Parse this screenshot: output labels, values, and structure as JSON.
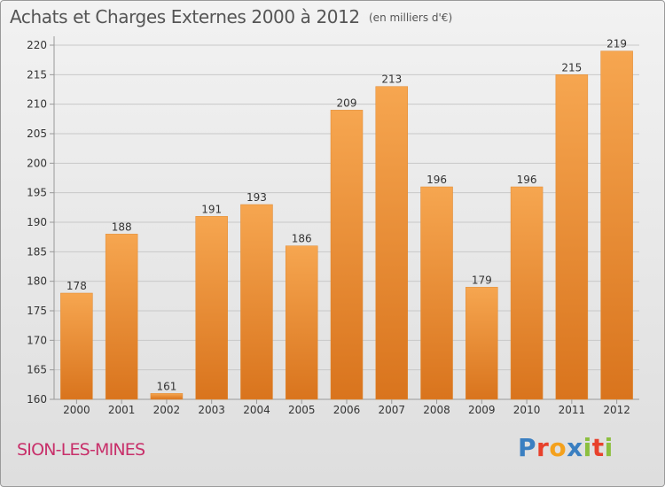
{
  "title": "Achats et Charges Externes 2000 à 2012",
  "subtitle": "(en milliers d'€)",
  "place": "SION-LES-MINES",
  "brand": {
    "name": "Proxiti",
    "letters": [
      {
        "ch": "P",
        "color": "#3a7fc1"
      },
      {
        "ch": "r",
        "color": "#e8412c"
      },
      {
        "ch": "o",
        "color": "#f4a11d"
      },
      {
        "ch": "x",
        "color": "#3a7fc1"
      },
      {
        "ch": "i",
        "color": "#8cbf3f"
      },
      {
        "ch": "t",
        "color": "#e8412c"
      },
      {
        "ch": "i",
        "color": "#8cbf3f"
      }
    ]
  },
  "colors": {
    "bar_top": "#f6a650",
    "bar_bottom": "#d9741d",
    "grid": "#c8c8c8",
    "axis_text": "#333333",
    "place": "#c8306a"
  },
  "chart_data": {
    "type": "bar",
    "categories": [
      "2000",
      "2001",
      "2002",
      "2003",
      "2004",
      "2005",
      "2006",
      "2007",
      "2008",
      "2009",
      "2010",
      "2011",
      "2012"
    ],
    "values": [
      178,
      188,
      161,
      191,
      193,
      186,
      209,
      213,
      196,
      179,
      196,
      215,
      219
    ],
    "yticks": [
      160,
      165,
      170,
      175,
      180,
      185,
      190,
      195,
      200,
      205,
      210,
      215,
      220
    ],
    "ylim": [
      160,
      220
    ],
    "grid": true
  }
}
